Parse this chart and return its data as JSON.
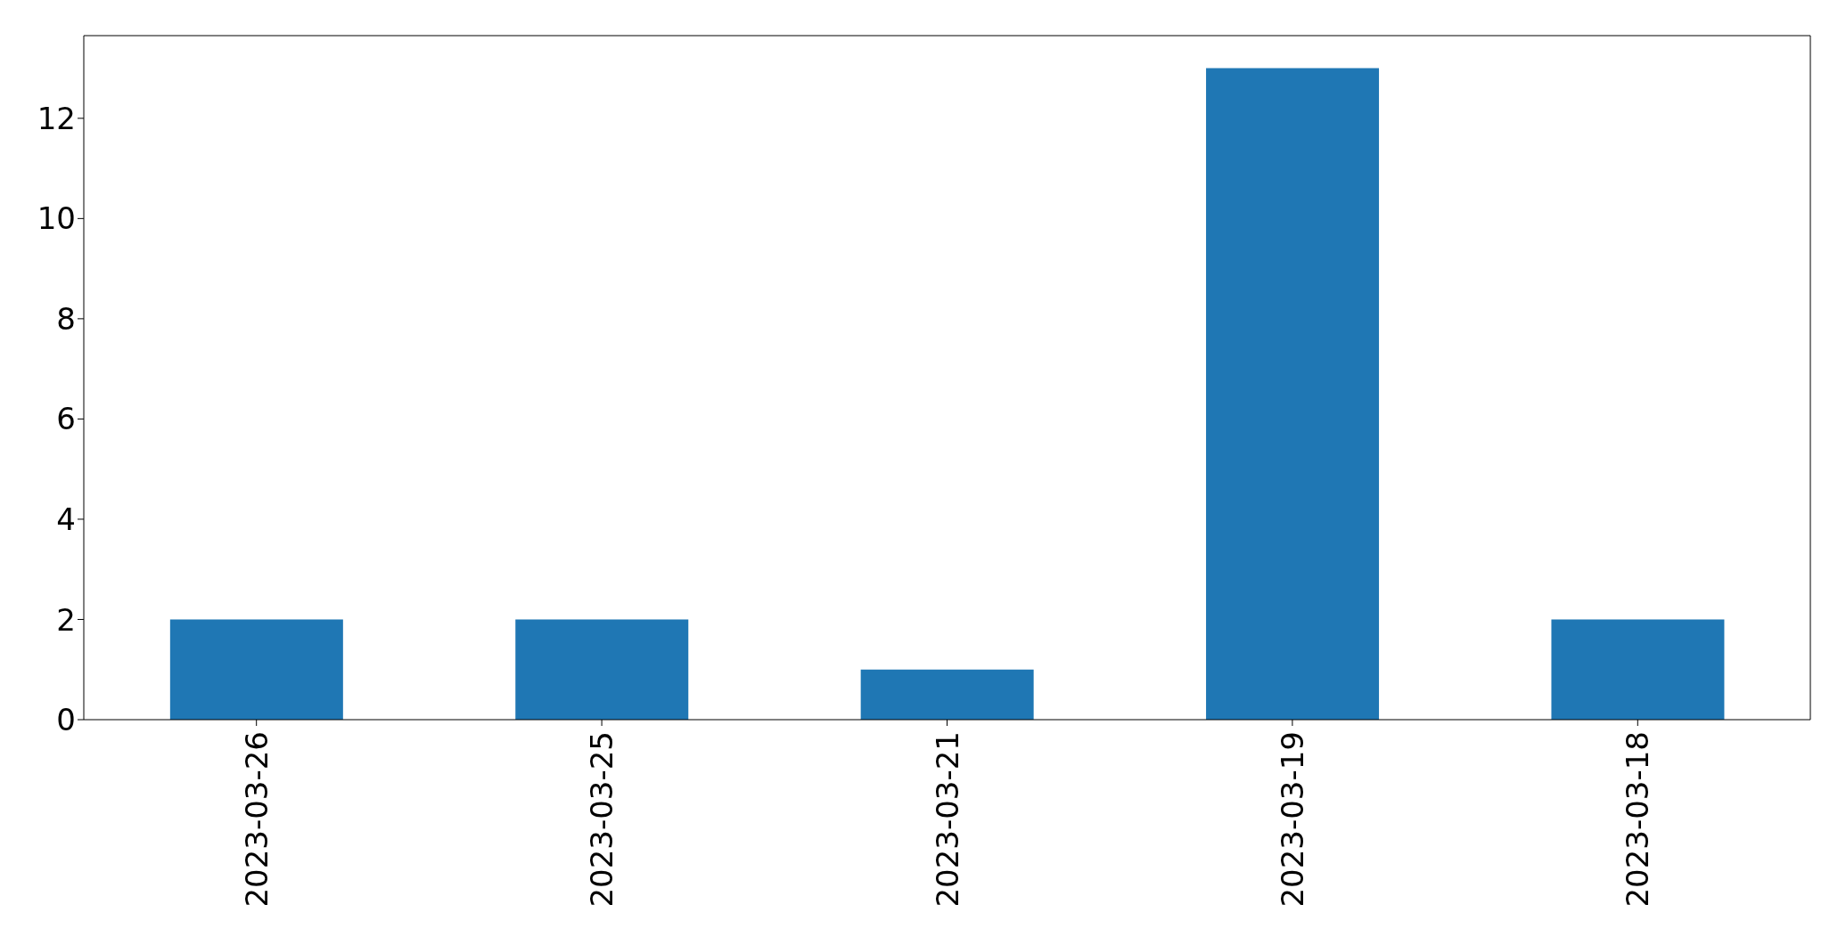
{
  "chart_data": {
    "type": "bar",
    "categories": [
      "2023-03-26",
      "2023-03-25",
      "2023-03-21",
      "2023-03-19",
      "2023-03-18"
    ],
    "values": [
      2,
      2,
      1,
      13,
      2
    ],
    "color": "#1f77b4",
    "ylim": [
      0,
      13.65
    ],
    "yticks": [
      0,
      2,
      4,
      6,
      8,
      10,
      12
    ]
  }
}
